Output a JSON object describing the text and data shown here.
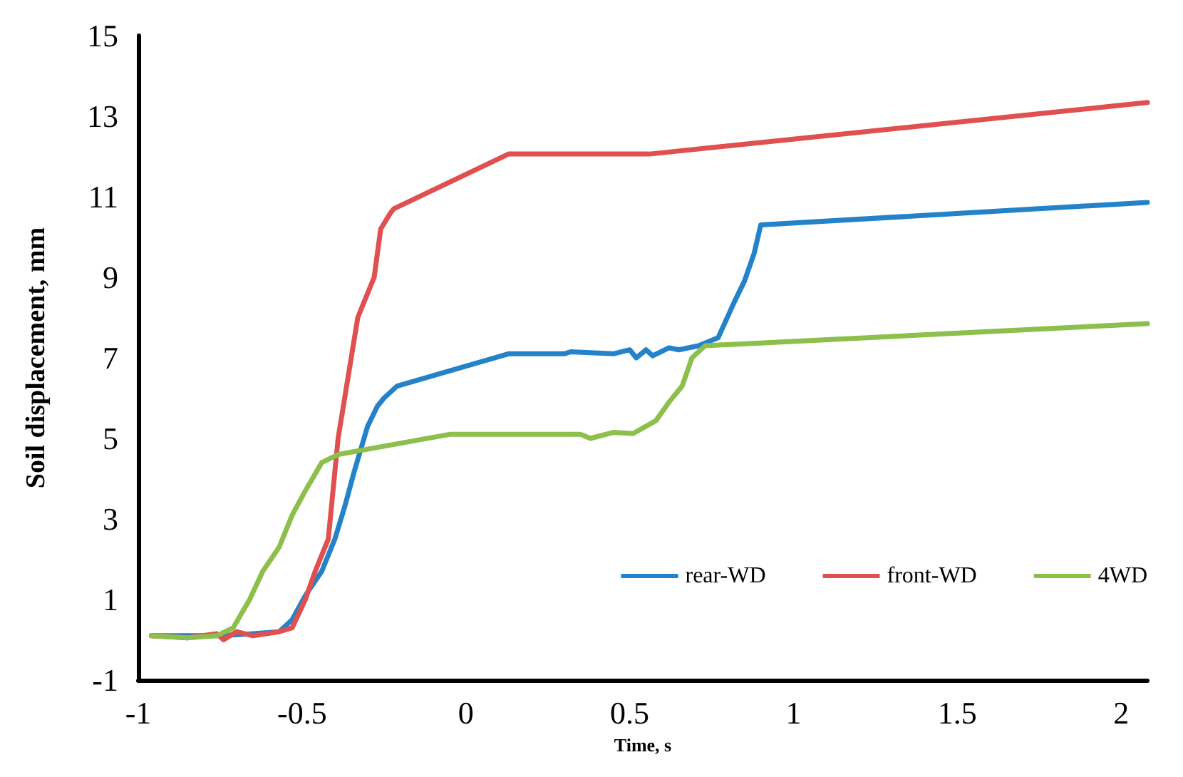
{
  "chart_data": {
    "type": "line",
    "xlabel": "Time, s",
    "ylabel": "Soil displacement, mm",
    "xlim": [
      -1,
      2.08
    ],
    "xticks": [
      -1,
      -0.5,
      0,
      0.5,
      1,
      1.5,
      2
    ],
    "ylim": [
      -1,
      15
    ],
    "yticks": [
      -1,
      1,
      3,
      5,
      7,
      9,
      11,
      13,
      15
    ],
    "grid": false,
    "legend": "bottom right",
    "marker": "none",
    "line_style": "solid",
    "series": [
      {
        "name": "rear-WD",
        "color": "#2382c8",
        "x": [
          -0.96,
          -0.85,
          -0.75,
          -0.65,
          -0.57,
          -0.53,
          -0.49,
          -0.44,
          -0.4,
          -0.37,
          -0.34,
          -0.3,
          -0.27,
          -0.25,
          -0.21,
          0.13,
          0.3,
          0.32,
          0.45,
          0.5,
          0.52,
          0.55,
          0.57,
          0.62,
          0.65,
          0.71,
          0.77,
          0.82,
          0.85,
          0.88,
          0.9,
          2.08
        ],
        "values": [
          0.1,
          0.1,
          0.1,
          0.15,
          0.2,
          0.5,
          1.1,
          1.7,
          2.5,
          3.3,
          4.2,
          5.3,
          5.8,
          6.0,
          6.3,
          7.1,
          7.1,
          7.15,
          7.1,
          7.2,
          7.0,
          7.2,
          7.05,
          7.25,
          7.2,
          7.3,
          7.5,
          8.4,
          8.9,
          9.6,
          10.3,
          10.86
        ]
      },
      {
        "name": "front-WD",
        "color": "#e05050",
        "x": [
          -0.96,
          -0.85,
          -0.76,
          -0.74,
          -0.7,
          -0.65,
          -0.57,
          -0.53,
          -0.49,
          -0.46,
          -0.42,
          -0.39,
          -0.35,
          -0.33,
          -0.28,
          -0.26,
          -0.23,
          -0.22,
          0.13,
          0.56,
          2.08
        ],
        "values": [
          0.1,
          0.05,
          0.15,
          0.0,
          0.2,
          0.1,
          0.2,
          0.3,
          1.0,
          1.7,
          2.5,
          5.0,
          7.0,
          8.0,
          9.0,
          10.2,
          10.6,
          10.7,
          12.06,
          12.06,
          13.34
        ]
      },
      {
        "name": "4WD",
        "color": "#8cbf4b",
        "x": [
          -0.96,
          -0.85,
          -0.76,
          -0.71,
          -0.66,
          -0.62,
          -0.57,
          -0.53,
          -0.49,
          -0.44,
          -0.39,
          -0.05,
          0.2,
          0.35,
          0.38,
          0.45,
          0.51,
          0.58,
          0.62,
          0.66,
          0.69,
          0.73,
          2.08
        ],
        "values": [
          0.1,
          0.05,
          0.1,
          0.3,
          1.0,
          1.7,
          2.3,
          3.1,
          3.7,
          4.4,
          4.6,
          5.1,
          5.1,
          5.1,
          5.0,
          5.15,
          5.12,
          5.44,
          5.9,
          6.3,
          7.0,
          7.3,
          7.85
        ]
      }
    ]
  }
}
